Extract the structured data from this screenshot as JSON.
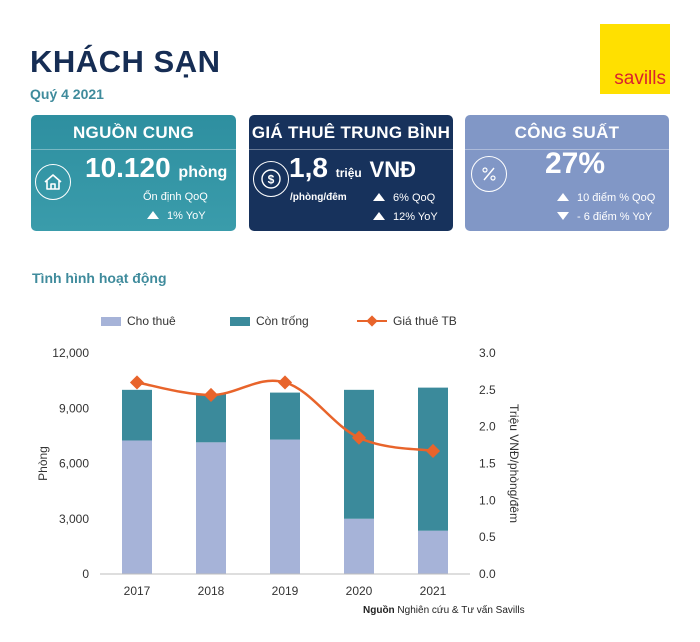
{
  "header": {
    "title": "KHÁCH SẠN",
    "subtitle": "Quý 4 2021",
    "logo": "savills"
  },
  "cards": {
    "supply": {
      "title": "NGUỒN CUNG",
      "value": "10.120",
      "unit": "phòng",
      "line1": "Ổn định QoQ",
      "line2": "1% YoY",
      "icon": "house-icon"
    },
    "rent": {
      "title": "GIÁ THUÊ TRUNG BÌNH",
      "value": "1,8",
      "unit_small": "triệu",
      "unit": "VNĐ",
      "per": "/phòng/đêm",
      "line1": "6% QoQ",
      "line2": "12% YoY",
      "icon": "dollar-coin-icon"
    },
    "occupancy": {
      "title": "CÔNG SUẤT",
      "value": "27%",
      "line1": "10 điểm % QoQ",
      "line2": "- 6 điểm % YoY",
      "icon": "percent-icon"
    }
  },
  "section_title": "Tình hình hoạt động",
  "colors": {
    "occupied": "#a6b3d8",
    "vacant": "#3b8a9b",
    "price_line": "#e8642b"
  },
  "chart_data": {
    "type": "bar",
    "stacked": true,
    "categories": [
      "2017",
      "2018",
      "2019",
      "2020",
      "2021"
    ],
    "series": [
      {
        "name": "Cho thuê",
        "values": [
          7250,
          7150,
          7300,
          3000,
          2350
        ]
      },
      {
        "name": "Còn trống",
        "values": [
          2750,
          2650,
          2550,
          7000,
          7770
        ]
      }
    ],
    "line_series": {
      "name": "Giá thuê TB",
      "axis": "right",
      "values": [
        2.6,
        2.43,
        2.6,
        1.85,
        1.67
      ]
    },
    "ylabel": "Phòng",
    "ylim": [
      0,
      12000
    ],
    "yticks": [
      "0",
      "3,000",
      "6,000",
      "9,000",
      "12,000"
    ],
    "ytick_values": [
      0,
      3000,
      6000,
      9000,
      12000
    ],
    "y2label": "Triệu VNĐ/phòng/đêm",
    "y2lim": [
      0,
      3.0
    ],
    "y2ticks": [
      "0.0",
      "0.5",
      "1.0",
      "1.5",
      "2.0",
      "2.5",
      "3.0"
    ],
    "y2tick_values": [
      0,
      0.5,
      1.0,
      1.5,
      2.0,
      2.5,
      3.0
    ],
    "legend_position": "top",
    "grid": false
  },
  "source": {
    "label": "Nguồn",
    "text": " Nghiên cứu & Tư vấn Savills"
  }
}
